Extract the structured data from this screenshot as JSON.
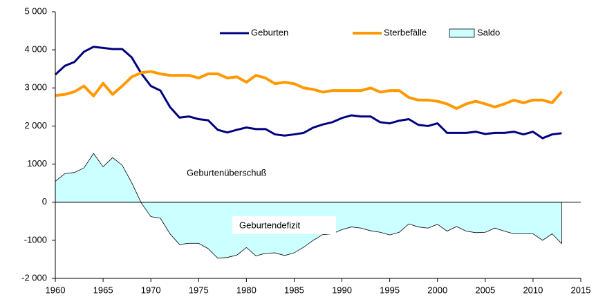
{
  "chart_data": {
    "type": "line",
    "x": [
      1960,
      1961,
      1962,
      1963,
      1964,
      1965,
      1966,
      1967,
      1968,
      1969,
      1970,
      1971,
      1972,
      1973,
      1974,
      1975,
      1976,
      1977,
      1978,
      1979,
      1980,
      1981,
      1982,
      1983,
      1984,
      1985,
      1986,
      1987,
      1988,
      1989,
      1990,
      1991,
      1992,
      1993,
      1994,
      1995,
      1996,
      1997,
      1998,
      1999,
      2000,
      2001,
      2002,
      2003,
      2004,
      2005,
      2006,
      2007,
      2008,
      2009,
      2010,
      2011,
      2012,
      2013
    ],
    "series": [
      {
        "name": "Saldo",
        "color": "#ccffff",
        "style": "area",
        "values": [
          550,
          750,
          780,
          900,
          1280,
          930,
          1170,
          970,
          510,
          -20,
          -380,
          -420,
          -830,
          -1110,
          -1080,
          -1080,
          -1220,
          -1470,
          -1450,
          -1390,
          -1190,
          -1410,
          -1340,
          -1330,
          -1400,
          -1330,
          -1180,
          -1000,
          -850,
          -830,
          -720,
          -650,
          -680,
          -750,
          -790,
          -860,
          -790,
          -570,
          -650,
          -680,
          -580,
          -760,
          -640,
          -760,
          -800,
          -790,
          -680,
          -760,
          -830,
          -830,
          -830,
          -1000,
          -830,
          -1090
        ]
      },
      {
        "name": "Geburten",
        "color": "#000080",
        "style": "line",
        "values": [
          3350,
          3580,
          3680,
          3950,
          4080,
          4050,
          4020,
          4020,
          3800,
          3380,
          3050,
          2930,
          2500,
          2220,
          2250,
          2180,
          2150,
          1900,
          1830,
          1900,
          1960,
          1920,
          1920,
          1780,
          1750,
          1780,
          1820,
          1960,
          2040,
          2100,
          2210,
          2280,
          2250,
          2250,
          2100,
          2070,
          2140,
          2180,
          2030,
          2000,
          2070,
          1820,
          1820,
          1820,
          1850,
          1790,
          1820,
          1820,
          1850,
          1780,
          1850,
          1680,
          1780,
          1810
        ]
      },
      {
        "name": "Sterbefälle",
        "color": "#ff9900",
        "style": "line",
        "values": [
          2800,
          2830,
          2900,
          3050,
          2790,
          3120,
          2830,
          3050,
          3290,
          3400,
          3430,
          3370,
          3330,
          3330,
          3330,
          3260,
          3370,
          3370,
          3260,
          3290,
          3150,
          3330,
          3260,
          3110,
          3150,
          3110,
          3000,
          2960,
          2890,
          2930,
          2930,
          2930,
          2930,
          3000,
          2890,
          2930,
          2930,
          2750,
          2680,
          2680,
          2650,
          2580,
          2460,
          2580,
          2650,
          2580,
          2500,
          2580,
          2680,
          2610,
          2680,
          2680,
          2610,
          2900
        ]
      }
    ],
    "xlim": [
      1960,
      2015
    ],
    "xticks": [
      1960,
      1965,
      1970,
      1975,
      1980,
      1985,
      1990,
      1995,
      2000,
      2005,
      2010,
      2015
    ],
    "ylim": [
      -2000,
      5000
    ],
    "yticks": [
      {
        "value": -2000,
        "label": "-2 000"
      },
      -1000,
      0,
      1000,
      {
        "value": 2000,
        "label": "2 000"
      },
      {
        "value": 3000,
        "label": "3 000"
      },
      {
        "value": 4000,
        "label": "4 000"
      },
      {
        "value": 5000,
        "label": "5 000"
      }
    ],
    "grid": false,
    "legend": "top",
    "annotations": [
      "Geburtenüberschuß",
      "Geburtendefizit"
    ]
  }
}
